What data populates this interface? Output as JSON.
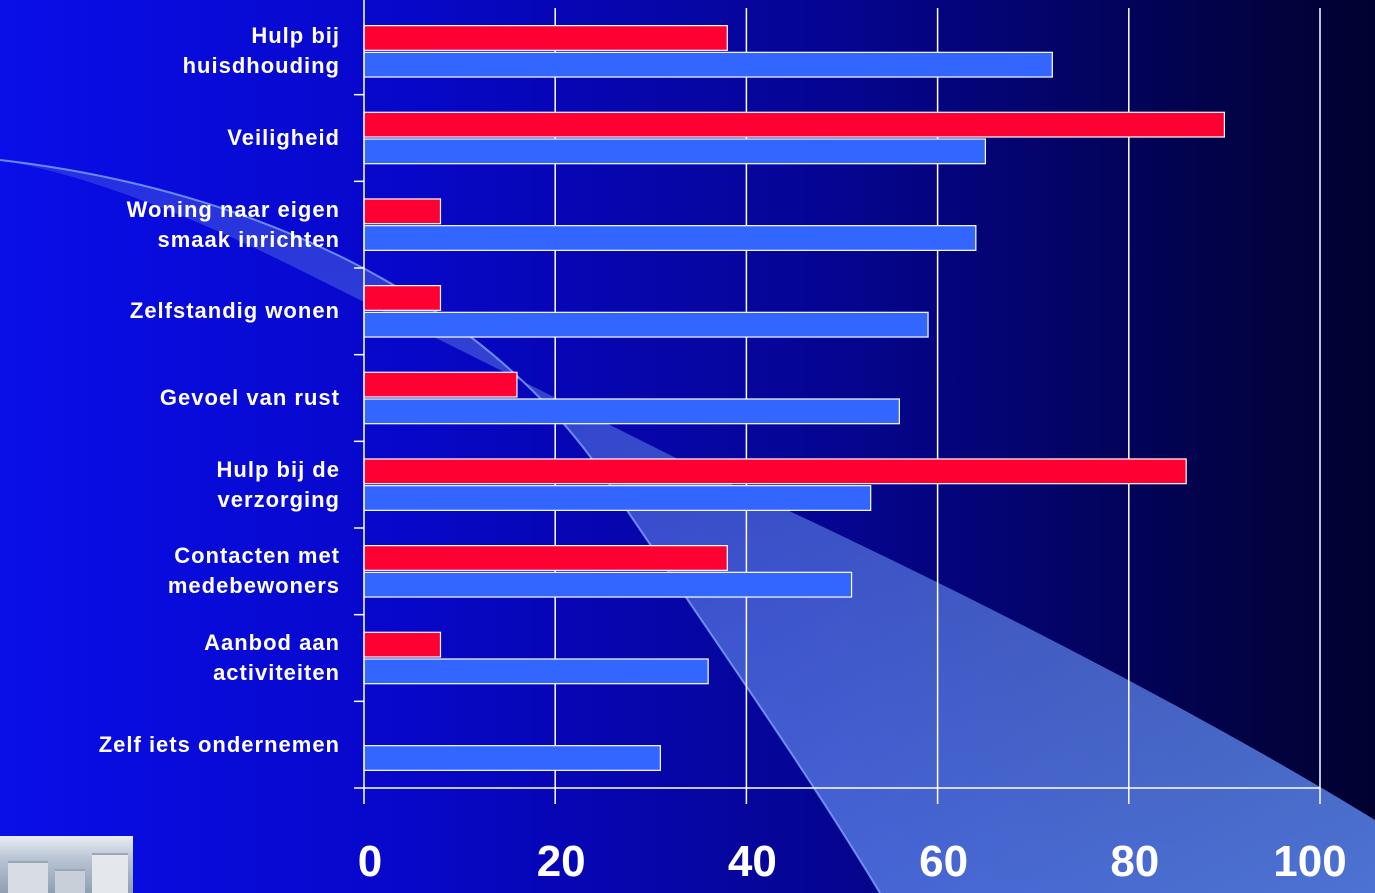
{
  "colors": {
    "series_a": "#ff0033",
    "series_b": "#3366ff",
    "gridline": "#ffffff",
    "text": "#ffffff"
  },
  "chart_data": {
    "type": "bar",
    "orientation": "horizontal",
    "title": "",
    "xlabel": "",
    "ylabel": "",
    "xlim": [
      0,
      100
    ],
    "xticks": [
      "0",
      "20",
      "40",
      "60",
      "80",
      "100"
    ],
    "grid": true,
    "legend": "none",
    "categories": [
      "Hulp bij\nhuisdhouding",
      "Veiligheid",
      "Woning naar eigen\nsmaak inrichten",
      "Zelfstandig wonen",
      "Gevoel van rust",
      "Hulp bij de\nverzorging",
      "Contacten met\nmedebewoners",
      "Aanbod aan\nactiviteiten",
      "Zelf iets ondernemen"
    ],
    "series": [
      {
        "color": "#ff0033",
        "values": [
          38,
          90,
          8,
          8,
          16,
          86,
          38,
          8,
          0
        ]
      },
      {
        "color": "#3366ff",
        "values": [
          72,
          65,
          64,
          59,
          56,
          53,
          51,
          36,
          31
        ]
      }
    ]
  },
  "photo": {
    "icon": "building-photo-thumbnail"
  }
}
